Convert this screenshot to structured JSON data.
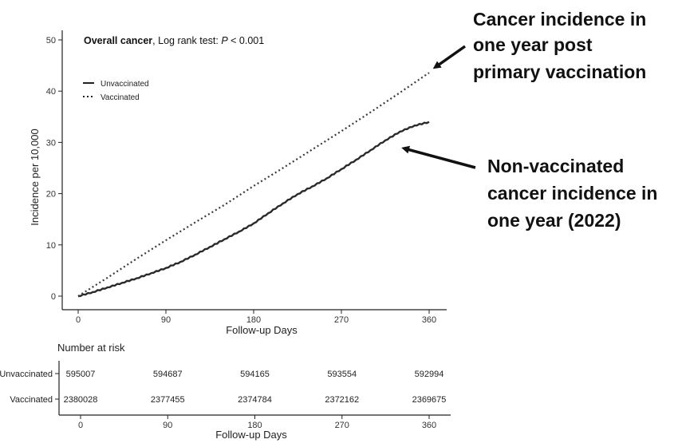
{
  "chart_data": {
    "type": "line",
    "title_bold": "Overall cancer",
    "title_rest": ", Log rank test: ",
    "title_p": "P",
    "title_p_value": " < 0.001",
    "xlabel": "Follow-up Days",
    "ylabel": "Incidence per 10,000",
    "xlim": [
      0,
      360
    ],
    "ylim": [
      0,
      50
    ],
    "x_ticks": [
      "0",
      "90",
      "180",
      "270",
      "360"
    ],
    "y_ticks": [
      "0",
      "10",
      "20",
      "30",
      "40",
      "50"
    ],
    "legend": [
      "Unvaccinated",
      "Vaccinated"
    ],
    "series": [
      {
        "name": "Unvaccinated",
        "style": "solid",
        "x": [
          0,
          15,
          30,
          45,
          60,
          75,
          90,
          105,
          120,
          135,
          150,
          165,
          180,
          195,
          210,
          225,
          240,
          255,
          270,
          285,
          300,
          315,
          330,
          345,
          360
        ],
        "values": [
          0,
          0.8,
          1.7,
          2.6,
          3.5,
          4.5,
          5.5,
          6.7,
          8.1,
          9.6,
          11.1,
          12.6,
          14.2,
          16.2,
          18.1,
          19.9,
          21.4,
          23.0,
          24.8,
          26.6,
          28.5,
          30.4,
          32.1,
          33.3,
          34.0
        ]
      },
      {
        "name": "Vaccinated",
        "style": "dotted",
        "x": [
          0,
          30,
          60,
          90,
          120,
          150,
          180,
          210,
          240,
          270,
          300,
          330,
          360
        ],
        "values": [
          0,
          3.6,
          7.3,
          10.9,
          14.4,
          17.8,
          21.5,
          25.0,
          28.6,
          32.2,
          35.9,
          39.7,
          43.6
        ]
      }
    ],
    "risk_table": {
      "title": "Number at risk",
      "rows": [
        {
          "label": "Unvaccinated",
          "values": [
            "595007",
            "594687",
            "594165",
            "593554",
            "592994"
          ]
        },
        {
          "label": "Vaccinated",
          "values": [
            "2380028",
            "2377455",
            "2374784",
            "2372162",
            "2369675"
          ]
        }
      ],
      "x_ticks": [
        "0",
        "90",
        "180",
        "270",
        "360"
      ],
      "xlabel": "Follow-up Days"
    },
    "annotations": [
      {
        "lines": [
          "Cancer incidence in",
          "one year post",
          "primary vaccination"
        ],
        "points_to": "Vaccinated"
      },
      {
        "lines": [
          "Non-vaccinated",
          "cancer incidence in",
          "one year (2022)"
        ],
        "points_to": "Unvaccinated"
      }
    ],
    "colors": {
      "line": "#2a2a2a",
      "text": "#111111"
    }
  }
}
